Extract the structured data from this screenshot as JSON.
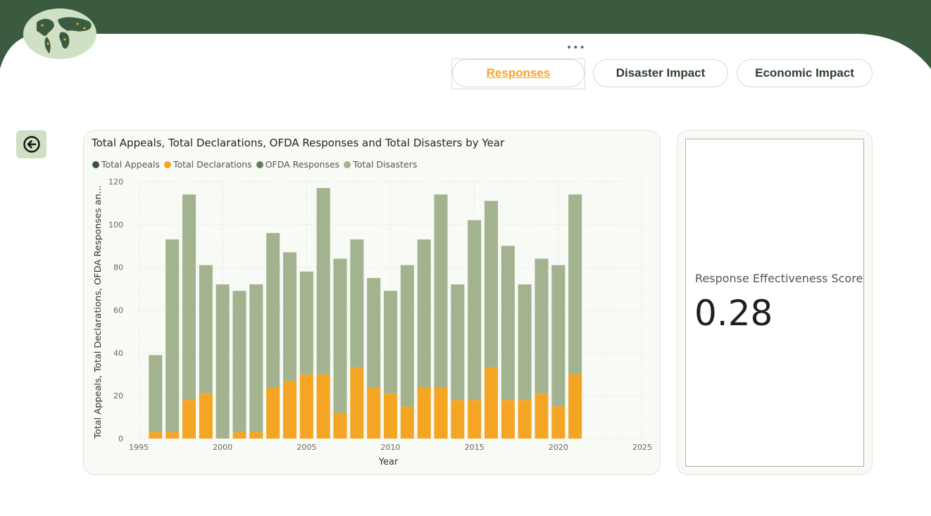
{
  "nav": {
    "more_label": "•••",
    "tabs": [
      {
        "label": "Responses",
        "selected": true
      },
      {
        "label": "Disaster Impact",
        "selected": false
      },
      {
        "label": "Economic Impact",
        "selected": false
      }
    ]
  },
  "back_button": {
    "icon": "arrow-left-circle-icon"
  },
  "logo": {
    "icon": "world-map-logo"
  },
  "colors": {
    "header_green": "#3b5b40",
    "total_appeals": "#3a553c",
    "total_declarations": "#f5a524",
    "ofda_responses": "#5f7f5a",
    "total_disasters": "#a3b38f",
    "accent": "#f5a524"
  },
  "kpi": {
    "label": "Response Effectiveness Score",
    "value": "0.28"
  },
  "chart_data": {
    "type": "bar",
    "stacked": true,
    "title": "Total Appeals, Total Declarations, OFDA Responses and Total Disasters by Year",
    "xlabel": "Year",
    "ylabel": "Total Appeals, Total Declarations, OFDA Responses an...",
    "xlim": [
      1995,
      2025
    ],
    "ylim": [
      0,
      120
    ],
    "xticks": [
      1995,
      2000,
      2005,
      2010,
      2015,
      2020,
      2025
    ],
    "yticks": [
      0,
      20,
      40,
      60,
      80,
      100,
      120
    ],
    "grid": true,
    "legend_position": "top-left",
    "x": [
      1996,
      1997,
      1998,
      1999,
      2000,
      2001,
      2002,
      2003,
      2004,
      2005,
      2006,
      2007,
      2008,
      2009,
      2010,
      2011,
      2012,
      2013,
      2014,
      2015,
      2016,
      2017,
      2018,
      2019,
      2020,
      2021
    ],
    "series": [
      {
        "name": "Total Appeals",
        "values": [
          0,
          0,
          0,
          0,
          0,
          0,
          0,
          0,
          0,
          0,
          0,
          0,
          0,
          0,
          0,
          0,
          0,
          0,
          0,
          0,
          0,
          0,
          0,
          0,
          0,
          0
        ]
      },
      {
        "name": "Total Declarations",
        "values": [
          3,
          3,
          18,
          21,
          0,
          3,
          3,
          24,
          27,
          30,
          30,
          12,
          33,
          24,
          21,
          15,
          24,
          24,
          18,
          18,
          33,
          18,
          18,
          21,
          15,
          30
        ]
      },
      {
        "name": "OFDA Responses",
        "values": [
          0,
          0,
          0,
          0,
          0,
          0,
          0,
          0,
          0,
          0,
          0,
          0,
          0,
          0,
          0,
          0,
          0,
          0,
          0,
          0,
          0,
          0,
          0,
          0,
          0,
          0
        ]
      },
      {
        "name": "Total Disasters",
        "values": [
          36,
          90,
          96,
          60,
          72,
          66,
          69,
          72,
          60,
          48,
          87,
          72,
          60,
          51,
          48,
          66,
          69,
          90,
          54,
          84,
          78,
          72,
          54,
          63,
          66,
          84
        ]
      }
    ]
  }
}
